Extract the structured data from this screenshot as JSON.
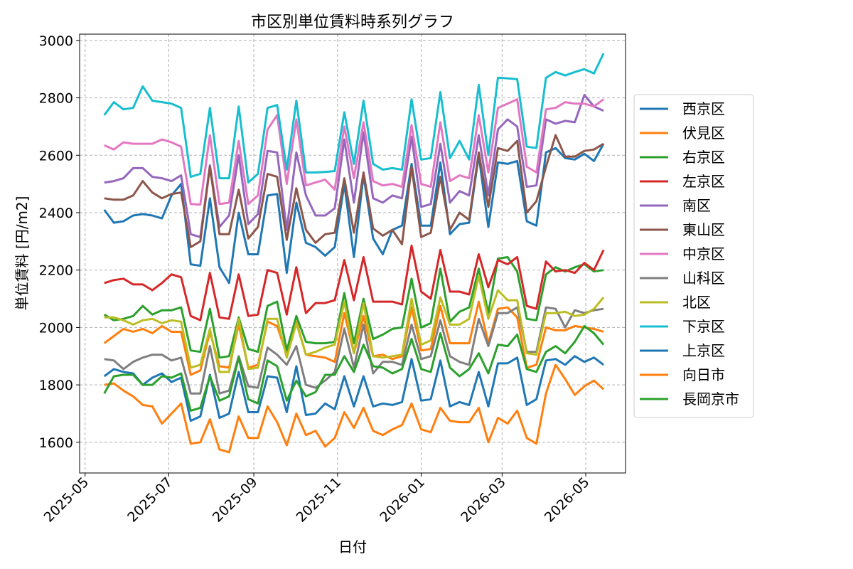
{
  "chart_data": {
    "type": "line",
    "title": "市区別単位賃料時系列グラフ",
    "xlabel": "日付",
    "ylabel": "単位賃料 [円/m2]",
    "x": [
      "2025-05-15",
      "2025-05-22",
      "2025-05-29",
      "2025-06-05",
      "2025-06-12",
      "2025-06-19",
      "2025-06-26",
      "2025-07-03",
      "2025-07-10",
      "2025-07-17",
      "2025-07-24",
      "2025-07-31",
      "2025-08-07",
      "2025-08-14",
      "2025-08-21",
      "2025-08-28",
      "2025-09-04",
      "2025-09-11",
      "2025-09-18",
      "2025-09-25",
      "2025-10-02",
      "2025-10-09",
      "2025-10-16",
      "2025-10-23",
      "2025-10-30",
      "2025-11-06",
      "2025-11-13",
      "2025-11-20",
      "2025-11-27",
      "2025-12-04",
      "2025-12-11",
      "2025-12-18",
      "2025-12-25",
      "2026-01-01",
      "2026-01-08",
      "2026-01-15",
      "2026-01-22",
      "2026-01-29",
      "2026-02-05",
      "2026-02-12",
      "2026-02-19",
      "2026-02-26",
      "2026-03-05",
      "2026-03-12",
      "2026-03-19",
      "2026-03-26",
      "2026-04-02",
      "2026-04-09",
      "2026-04-16",
      "2026-04-23",
      "2026-04-30",
      "2026-05-07",
      "2026-05-14"
    ],
    "xlim": [
      "2025-04-27",
      "2026-05-30"
    ],
    "xticks": [
      "2025-05",
      "2025-07",
      "2025-09",
      "2025-11",
      "2026-01",
      "2026-03",
      "2026-05"
    ],
    "ylim": [
      1493,
      3022
    ],
    "yticks": [
      1600,
      1800,
      2000,
      2200,
      2400,
      2600,
      2800,
      3000
    ],
    "grid": true,
    "legend": "right",
    "series": [
      {
        "name": "西京区",
        "color": "#1f77b4",
        "values": [
          2410,
          2365,
          2370,
          2390,
          2395,
          2390,
          2380,
          2460,
          2500,
          2220,
          2215,
          2450,
          2210,
          2155,
          2400,
          2255,
          2255,
          2460,
          2465,
          2190,
          2435,
          2295,
          2280,
          2250,
          2280,
          2500,
          2245,
          2530,
          2310,
          2255,
          2340,
          2355,
          2570,
          2355,
          2355,
          2575,
          2325,
          2360,
          2365,
          2600,
          2350,
          2575,
          2570,
          2580,
          2370,
          2355,
          2610,
          2625,
          2590,
          2585,
          2605,
          2580,
          2640
        ]
      },
      {
        "name": "伏見区",
        "color": "#ff7f0e",
        "values": [
          1945,
          1970,
          1995,
          1985,
          1995,
          1980,
          2005,
          1985,
          1985,
          1835,
          1850,
          1985,
          1865,
          1860,
          2010,
          1860,
          1870,
          2020,
          2005,
          1905,
          2020,
          1905,
          1900,
          1895,
          1880,
          2050,
          1910,
          2040,
          1900,
          1905,
          1890,
          1900,
          2070,
          1920,
          1925,
          2075,
          1945,
          1945,
          1945,
          2090,
          1945,
          2065,
          2070,
          2035,
          1860,
          1870,
          2000,
          1990,
          1990,
          2005,
          2000,
          1995,
          1985
        ]
      },
      {
        "name": "右京区",
        "color": "#2ca02c",
        "values": [
          2045,
          2025,
          2030,
          2040,
          2075,
          2045,
          2060,
          2060,
          2070,
          1920,
          1915,
          2065,
          1895,
          1900,
          2035,
          1925,
          1915,
          2075,
          2090,
          1920,
          2040,
          1950,
          1945,
          1945,
          1950,
          2120,
          1945,
          2100,
          1960,
          1975,
          1995,
          2000,
          2170,
          2000,
          2015,
          2205,
          2020,
          2055,
          2070,
          2205,
          2050,
          2240,
          2245,
          2195,
          2030,
          2025,
          2185,
          2210,
          2195,
          2210,
          2220,
          2195,
          2200
        ]
      },
      {
        "name": "左京区",
        "color": "#d62728",
        "values": [
          2155,
          2165,
          2170,
          2150,
          2150,
          2130,
          2155,
          2185,
          2175,
          2040,
          2025,
          2190,
          2035,
          2030,
          2185,
          2040,
          2045,
          2200,
          2190,
          2045,
          2210,
          2050,
          2085,
          2085,
          2095,
          2235,
          2095,
          2245,
          2090,
          2090,
          2090,
          2080,
          2285,
          2125,
          2100,
          2270,
          2125,
          2125,
          2115,
          2255,
          2140,
          2235,
          2220,
          2245,
          2075,
          2065,
          2230,
          2195,
          2200,
          2190,
          2225,
          2200,
          2270
        ]
      },
      {
        "name": "南区",
        "color": "#9467bd",
        "values": [
          2505,
          2510,
          2520,
          2555,
          2555,
          2525,
          2520,
          2510,
          2530,
          2325,
          2315,
          2565,
          2350,
          2390,
          2600,
          2360,
          2395,
          2615,
          2610,
          2340,
          2610,
          2460,
          2390,
          2390,
          2415,
          2655,
          2435,
          2680,
          2450,
          2435,
          2460,
          2450,
          2665,
          2420,
          2430,
          2640,
          2435,
          2475,
          2460,
          2670,
          2460,
          2690,
          2725,
          2700,
          2490,
          2495,
          2725,
          2710,
          2720,
          2715,
          2810,
          2770,
          2755
        ]
      },
      {
        "name": "東山区",
        "color": "#8c564b",
        "values": [
          2450,
          2445,
          2445,
          2460,
          2510,
          2470,
          2450,
          2465,
          2470,
          2280,
          2300,
          2560,
          2325,
          2325,
          2480,
          2310,
          2350,
          2535,
          2525,
          2305,
          2485,
          2340,
          2295,
          2325,
          2330,
          2520,
          2330,
          2540,
          2345,
          2320,
          2340,
          2290,
          2560,
          2315,
          2330,
          2525,
          2340,
          2400,
          2375,
          2610,
          2420,
          2625,
          2615,
          2650,
          2400,
          2440,
          2560,
          2670,
          2595,
          2595,
          2615,
          2620,
          2640
        ]
      },
      {
        "name": "中京区",
        "color": "#e377c2",
        "values": [
          2635,
          2620,
          2645,
          2640,
          2640,
          2640,
          2655,
          2645,
          2630,
          2430,
          2428,
          2670,
          2430,
          2435,
          2650,
          2430,
          2460,
          2690,
          2740,
          2500,
          2725,
          2495,
          2505,
          2515,
          2480,
          2700,
          2520,
          2715,
          2510,
          2495,
          2500,
          2490,
          2705,
          2500,
          2490,
          2715,
          2510,
          2530,
          2520,
          2740,
          2540,
          2765,
          2780,
          2795,
          2560,
          2540,
          2760,
          2765,
          2785,
          2780,
          2780,
          2770,
          2795
        ]
      },
      {
        "name": "山科区",
        "color": "#7f7f7f",
        "values": [
          1890,
          1885,
          1855,
          1880,
          1895,
          1905,
          1905,
          1885,
          1895,
          1770,
          1770,
          1935,
          1770,
          1780,
          1900,
          1795,
          1790,
          1930,
          1905,
          1870,
          1935,
          1800,
          1790,
          1815,
          1845,
          1995,
          1860,
          2010,
          1840,
          1880,
          1880,
          1870,
          2010,
          1890,
          1900,
          2025,
          1900,
          1880,
          1870,
          2030,
          1935,
          2050,
          2050,
          2070,
          1915,
          1915,
          2070,
          2065,
          2000,
          2060,
          2050,
          2060,
          2065
        ]
      },
      {
        "name": "北区",
        "color": "#bcbd22",
        "values": [
          2035,
          2035,
          2025,
          2010,
          2025,
          2030,
          2015,
          2025,
          2020,
          1860,
          1870,
          1995,
          1845,
          1845,
          2030,
          1855,
          1860,
          2030,
          2030,
          1895,
          2015,
          1905,
          1915,
          1930,
          1940,
          2090,
          1910,
          2085,
          1900,
          1895,
          1900,
          1905,
          2100,
          1940,
          1955,
          2105,
          2010,
          2010,
          2030,
          2180,
          2030,
          2130,
          2095,
          2095,
          1910,
          1905,
          2050,
          2050,
          2055,
          2040,
          2045,
          2065,
          2105
        ]
      },
      {
        "name": "下京区",
        "color": "#17becf",
        "values": [
          2740,
          2785,
          2760,
          2765,
          2840,
          2790,
          2785,
          2780,
          2765,
          2525,
          2535,
          2765,
          2520,
          2520,
          2770,
          2505,
          2535,
          2765,
          2775,
          2550,
          2790,
          2540,
          2540,
          2542,
          2545,
          2750,
          2570,
          2790,
          2570,
          2550,
          2555,
          2550,
          2795,
          2585,
          2590,
          2820,
          2590,
          2650,
          2585,
          2845,
          2600,
          2870,
          2868,
          2865,
          2630,
          2625,
          2870,
          2890,
          2878,
          2890,
          2900,
          2885,
          2955
        ]
      },
      {
        "name": "上京区",
        "color": "#1f77b4",
        "values": [
          1830,
          1855,
          1845,
          1840,
          1800,
          1825,
          1840,
          1810,
          1825,
          1675,
          1690,
          1835,
          1685,
          1700,
          1845,
          1705,
          1705,
          1830,
          1825,
          1705,
          1865,
          1695,
          1700,
          1735,
          1715,
          1830,
          1725,
          1830,
          1725,
          1735,
          1730,
          1740,
          1890,
          1745,
          1750,
          1885,
          1725,
          1740,
          1730,
          1845,
          1725,
          1875,
          1875,
          1895,
          1730,
          1750,
          1885,
          1890,
          1870,
          1900,
          1880,
          1895,
          1870
        ]
      },
      {
        "name": "向日市",
        "color": "#ff7f0e",
        "values": [
          1800,
          1805,
          1780,
          1760,
          1730,
          1725,
          1665,
          1700,
          1735,
          1595,
          1600,
          1680,
          1575,
          1565,
          1690,
          1615,
          1615,
          1725,
          1670,
          1590,
          1700,
          1625,
          1640,
          1585,
          1615,
          1705,
          1650,
          1720,
          1640,
          1625,
          1645,
          1660,
          1735,
          1645,
          1635,
          1720,
          1675,
          1670,
          1670,
          1720,
          1600,
          1685,
          1665,
          1710,
          1615,
          1595,
          1770,
          1870,
          1820,
          1765,
          1795,
          1815,
          1785
        ]
      },
      {
        "name": "長岡京市",
        "color": "#2ca02c",
        "values": [
          1770,
          1830,
          1835,
          1835,
          1800,
          1800,
          1830,
          1825,
          1840,
          1710,
          1720,
          1830,
          1745,
          1760,
          1895,
          1750,
          1735,
          1885,
          1865,
          1745,
          1815,
          1760,
          1775,
          1835,
          1835,
          1900,
          1845,
          1940,
          1865,
          1860,
          1840,
          1855,
          1960,
          1855,
          1845,
          1980,
          1860,
          1830,
          1855,
          1910,
          1840,
          1940,
          1935,
          1975,
          1855,
          1845,
          1915,
          1935,
          1910,
          1950,
          2005,
          1980,
          1940
        ]
      }
    ]
  }
}
